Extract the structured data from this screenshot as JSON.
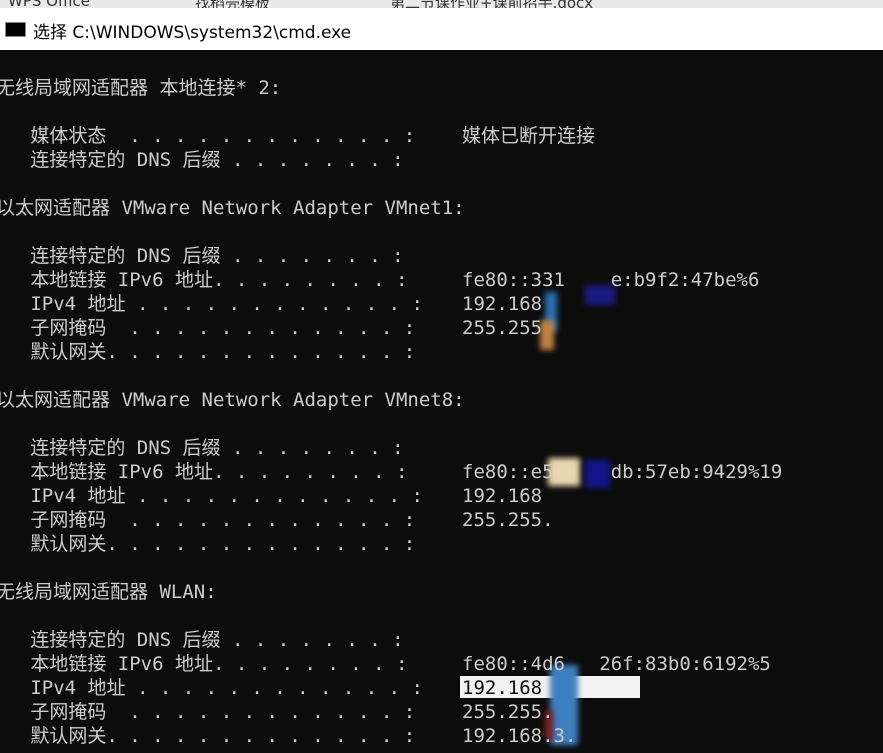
{
  "taskbar": [
    "WPS Office",
    "找稻壳模板",
    "第二节课作业+课前招手.docx"
  ],
  "window": {
    "title": "选择 C:\\WINDOWS\\system32\\cmd.exe"
  },
  "console": {
    "sections": [
      {
        "heading": "无线局域网适配器 本地连接* 2:",
        "entries": [
          {
            "label": "   媒体状态  . . . . . . . . . . . . :",
            "value": "媒体已断开连接"
          },
          {
            "label": "   连接特定的 DNS 后缀 . . . . . . . :"
          }
        ]
      },
      {
        "heading": "以太网适配器 VMware Network Adapter VMnet1:",
        "entries": [
          {
            "label": "   连接特定的 DNS 后缀 . . . . . . . :"
          },
          {
            "label": "   本地链接 IPv6 地址. . . . . . . . :",
            "value": "fe80::331    e:b9f2:47be%6"
          },
          {
            "label": "   IPv4 地址 . . . . . . . . . . . . :",
            "value": "192.168"
          },
          {
            "label": "   子网掩码  . . . . . . . . . . . . :",
            "value": "255.255"
          },
          {
            "label": "   默认网关. . . . . . . . . . . . . :"
          }
        ]
      },
      {
        "heading": "以太网适配器 VMware Network Adapter VMnet8:",
        "entries": [
          {
            "label": "   连接特定的 DNS 后缀 . . . . . . . :"
          },
          {
            "label": "   本地链接 IPv6 地址. . . . . . . . :",
            "value": "fe80::e5     db:57eb:9429%19"
          },
          {
            "label": "   IPv4 地址 . . . . . . . . . . . . :",
            "value": "192.168"
          },
          {
            "label": "   子网掩码  . . . . . . . . . . . . :",
            "value": "255.255."
          },
          {
            "label": "   默认网关. . . . . . . . . . . . . :"
          }
        ]
      },
      {
        "heading": "无线局域网适配器 WLAN:",
        "entries": [
          {
            "label": "   连接特定的 DNS 后缀 . . . . . . . :"
          },
          {
            "label": "   本地链接 IPv6 地址. . . . . . . . :",
            "value": "fe80::4d6   26f:83b0:6192%5"
          },
          {
            "label": "   IPv4 地址 . . . . . . . . . . . . :",
            "value": "192.168"
          },
          {
            "label": "   子网掩码  . . . . . . . . . . . . :",
            "value": "255.255."
          },
          {
            "label": "   默认网关. . . . . . . . . . . . . :",
            "value": "192.168.3."
          }
        ]
      }
    ]
  }
}
